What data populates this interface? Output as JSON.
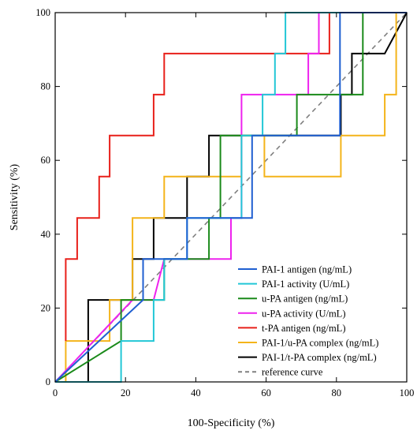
{
  "chart_data": {
    "type": "line",
    "title": "",
    "xlabel": "100-Specificity (%)",
    "ylabel": "Sensitivity (%)",
    "xlim": [
      0,
      100
    ],
    "ylim": [
      0,
      100
    ],
    "xticks": [
      0,
      20,
      40,
      60,
      80,
      100
    ],
    "yticks": [
      0,
      20,
      40,
      60,
      80,
      100
    ],
    "grid": false,
    "legend_position": "bottom-right",
    "series": [
      {
        "name": "PAI-1 antigen (ng/mL)",
        "color": "#1f5fd1",
        "style": "step",
        "x": [
          0,
          25,
          25,
          37.5,
          37.5,
          56,
          56,
          81,
          81,
          100
        ],
        "y": [
          0,
          22.2,
          33.3,
          33.3,
          44.4,
          44.4,
          66.7,
          66.7,
          100,
          100
        ]
      },
      {
        "name": "PAI-1 activity (U/mL)",
        "color": "#22c7d6",
        "style": "step",
        "x": [
          0,
          18.75,
          18.75,
          28,
          28,
          31,
          31,
          37.5,
          37.5,
          53,
          53,
          59,
          59,
          62.5,
          62.5,
          65.5,
          65.5,
          100
        ],
        "y": [
          0,
          0,
          11.1,
          11.1,
          22.2,
          22.2,
          33.3,
          33.3,
          44.4,
          44.4,
          66.7,
          66.7,
          77.8,
          77.8,
          88.9,
          88.9,
          100,
          100
        ]
      },
      {
        "name": "u-PA antigen (ng/mL)",
        "color": "#1a8a1a",
        "style": "step",
        "x": [
          0,
          18.75,
          18.75,
          28,
          28,
          31,
          31,
          43.75,
          43.75,
          47,
          47,
          68.75,
          68.75,
          87.5,
          87.5,
          100
        ],
        "y": [
          0,
          11.1,
          22.2,
          22.2,
          22.2,
          22.2,
          33.3,
          33.3,
          44.4,
          44.4,
          66.7,
          66.7,
          77.8,
          77.8,
          100,
          100
        ]
      },
      {
        "name": "u-PA activity (U/mL)",
        "color": "#ee22ee",
        "style": "step",
        "x": [
          0,
          22,
          28,
          28,
          31,
          31,
          50,
          50,
          53,
          53,
          72,
          72,
          75,
          75,
          100
        ],
        "y": [
          0,
          22.2,
          22.2,
          22.2,
          33.3,
          33.3,
          33.3,
          44.4,
          44.4,
          77.8,
          77.8,
          88.9,
          88.9,
          100,
          100
        ]
      },
      {
        "name": "t-PA antigen (ng/mL)",
        "color": "#e8201a",
        "style": "step",
        "x": [
          3,
          3,
          6.25,
          6.25,
          12.5,
          12.5,
          15.5,
          15.5,
          28,
          28,
          31,
          31,
          78,
          78,
          100
        ],
        "y": [
          11.1,
          33.3,
          33.3,
          44.4,
          44.4,
          55.6,
          55.6,
          66.7,
          66.7,
          77.8,
          77.8,
          88.9,
          88.9,
          100,
          100
        ]
      },
      {
        "name": "PAI-1/u-PA complex (ng/mL)",
        "color": "#f4b41a",
        "style": "step",
        "x": [
          3,
          3,
          15.5,
          15.5,
          22,
          22,
          31,
          31,
          53,
          53,
          59.5,
          59.5,
          81.25,
          81.25,
          93.75,
          93.75,
          97,
          97,
          100
        ],
        "y": [
          0,
          11.1,
          11.1,
          22.2,
          22.2,
          44.4,
          44.4,
          55.6,
          55.6,
          66.7,
          66.7,
          55.6,
          55.6,
          66.7,
          66.7,
          77.8,
          77.8,
          100,
          100
        ]
      },
      {
        "name": "PAI-1/t-PA complex (ng/mL)",
        "color": "#000000",
        "style": "step",
        "x": [
          0,
          9.4,
          9.4,
          22,
          22,
          28,
          28,
          37.5,
          37.5,
          43.75,
          43.75,
          81.25,
          81.25,
          84.4,
          84.4,
          93.75,
          100
        ],
        "y": [
          0,
          0,
          22.2,
          22.2,
          33.3,
          33.3,
          44.4,
          44.4,
          55.6,
          55.6,
          66.7,
          66.7,
          77.8,
          77.8,
          88.9,
          88.9,
          100
        ]
      },
      {
        "name": "reference curve",
        "color": "#808080",
        "style": "dashed",
        "x": [
          0,
          100
        ],
        "y": [
          0,
          100
        ]
      }
    ]
  }
}
